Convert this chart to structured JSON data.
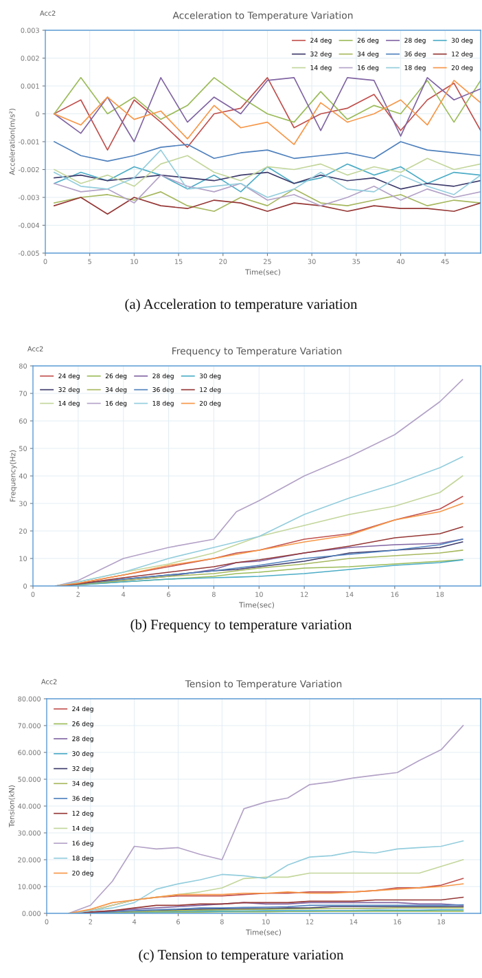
{
  "chart_data": [
    {
      "type": "line",
      "title": "Acceleration to Temperature Variation",
      "xlabel": "Time(sec)",
      "ylabel": "Acceleration(m/s²)",
      "annotations": [
        "Acc2",
        "(a) Acceleration to temperature variation"
      ],
      "x": [
        1,
        4,
        7,
        10,
        13,
        16,
        19,
        22,
        25,
        28,
        31,
        34,
        37,
        40,
        43,
        46,
        49
      ],
      "xlim": [
        0,
        49
      ],
      "xticks": [
        0,
        5,
        10,
        15,
        20,
        25,
        30,
        35,
        40,
        45
      ],
      "ylim": [
        -0.005,
        0.003
      ],
      "yticks": [
        -0.005,
        -0.004,
        -0.003,
        -0.002,
        -0.001,
        0,
        0.001,
        0.002,
        0.003
      ],
      "grid": true,
      "legend": "top right",
      "series": [
        {
          "name": "24 deg",
          "color": "#c0504d",
          "values": [
            0,
            0.0005,
            -0.0013,
            0.0005,
            -0.0003,
            -0.0012,
            0,
            0.0002,
            0.0013,
            -0.0005,
            0,
            0.0002,
            0.0007,
            -0.0006,
            0.0005,
            0.0011,
            -0.0006
          ]
        },
        {
          "name": "26 deg",
          "color": "#9bbb59",
          "values": [
            0,
            0.0013,
            0,
            0.0006,
            -0.0002,
            0.0003,
            0.0013,
            0.0006,
            0,
            -0.0003,
            0.0008,
            -0.0002,
            0.0003,
            0,
            0.0012,
            -0.0003,
            0.0012
          ]
        },
        {
          "name": "28 deg",
          "color": "#8064a2",
          "values": [
            0,
            -0.0007,
            0.0006,
            -0.001,
            0.0013,
            -0.0003,
            0.0006,
            0,
            0.0012,
            0.0013,
            -0.0006,
            0.0013,
            0.0012,
            -0.0008,
            0.0013,
            0.0005,
            0.0009
          ]
        },
        {
          "name": "30 deg",
          "color": "#4bacc6",
          "values": [
            -0.0025,
            -0.0021,
            -0.0024,
            -0.0019,
            -0.0022,
            -0.0027,
            -0.0022,
            -0.0028,
            -0.0019,
            -0.0025,
            -0.0023,
            -0.0018,
            -0.0022,
            -0.0019,
            -0.0025,
            -0.0021,
            -0.0022
          ]
        },
        {
          "name": "32 deg",
          "color": "#3d3a6b",
          "values": [
            -0.0023,
            -0.0022,
            -0.0024,
            -0.0023,
            -0.0022,
            -0.0023,
            -0.0024,
            -0.0022,
            -0.0021,
            -0.0025,
            -0.0022,
            -0.0024,
            -0.0023,
            -0.0027,
            -0.0025,
            -0.0026,
            -0.0024
          ]
        },
        {
          "name": "34 deg",
          "color": "#a6b85e",
          "values": [
            -0.0032,
            -0.003,
            -0.0029,
            -0.0031,
            -0.0028,
            -0.0033,
            -0.0035,
            -0.003,
            -0.0033,
            -0.0027,
            -0.0032,
            -0.0033,
            -0.0031,
            -0.0029,
            -0.0033,
            -0.0031,
            -0.0032
          ]
        },
        {
          "name": "36 deg",
          "color": "#4f81bd",
          "values": [
            -0.001,
            -0.0015,
            -0.0017,
            -0.0015,
            -0.0012,
            -0.0011,
            -0.0016,
            -0.0014,
            -0.0013,
            -0.0016,
            -0.0015,
            -0.0014,
            -0.0016,
            -0.001,
            -0.0013,
            -0.0014,
            -0.0015
          ]
        },
        {
          "name": "12 deg",
          "color": "#953735",
          "values": [
            -0.0033,
            -0.003,
            -0.0036,
            -0.003,
            -0.0033,
            -0.0034,
            -0.0031,
            -0.0032,
            -0.0035,
            -0.0032,
            -0.0033,
            -0.0035,
            -0.0033,
            -0.0034,
            -0.0034,
            -0.0035,
            -0.0032
          ]
        },
        {
          "name": "14 deg",
          "color": "#c3d69b",
          "values": [
            -0.002,
            -0.0025,
            -0.0022,
            -0.0026,
            -0.0018,
            -0.0015,
            -0.0021,
            -0.0024,
            -0.0019,
            -0.002,
            -0.0018,
            -0.0022,
            -0.0019,
            -0.0021,
            -0.0016,
            -0.002,
            -0.0018
          ]
        },
        {
          "name": "16 deg",
          "color": "#b3a2c7",
          "values": [
            -0.0025,
            -0.0028,
            -0.0027,
            -0.0032,
            -0.0022,
            -0.0026,
            -0.0028,
            -0.0025,
            -0.0031,
            -0.0029,
            -0.0033,
            -0.003,
            -0.0026,
            -0.0031,
            -0.0027,
            -0.003,
            -0.0028
          ]
        },
        {
          "name": "18 deg",
          "color": "#93cddd",
          "values": [
            -0.0021,
            -0.0026,
            -0.0027,
            -0.0023,
            -0.0013,
            -0.0027,
            -0.0026,
            -0.0025,
            -0.003,
            -0.0027,
            -0.0021,
            -0.0027,
            -0.0028,
            -0.0022,
            -0.0026,
            -0.0029,
            -0.0022
          ]
        },
        {
          "name": "20 deg",
          "color": "#f79646",
          "values": [
            0,
            -0.0004,
            0.0006,
            -0.0002,
            0.0001,
            -0.0009,
            0.0003,
            -0.0005,
            -0.0003,
            -0.0011,
            0.0004,
            -0.0003,
            0,
            0.0005,
            -0.0004,
            0.0012,
            0.0004
          ]
        }
      ]
    },
    {
      "type": "line",
      "title": "Frequency to Temperature Variation",
      "xlabel": "Time(sec)",
      "ylabel": "Frequency(Hz)",
      "annotations": [
        "Acc2",
        "(b) Frequency to temperature variation"
      ],
      "x": [
        1,
        2,
        4,
        6,
        8,
        9,
        10,
        12,
        14,
        16,
        18,
        19
      ],
      "xlim": [
        0,
        19.8
      ],
      "xticks": [
        0,
        2,
        4,
        6,
        8,
        10,
        12,
        14,
        16,
        18
      ],
      "ylim": [
        0,
        80
      ],
      "yticks": [
        0,
        10,
        20,
        30,
        40,
        50,
        60,
        70,
        80
      ],
      "grid": true,
      "legend": "top left",
      "series": [
        {
          "name": "24 deg",
          "color": "#c0504d",
          "values": [
            0,
            1,
            4,
            7,
            10,
            12,
            13,
            17,
            19,
            24,
            28,
            32.5
          ]
        },
        {
          "name": "26 deg",
          "color": "#9bbb59",
          "values": [
            0,
            0.4,
            1.5,
            2.5,
            3.5,
            4.5,
            5,
            6.5,
            7,
            8,
            9,
            9.5
          ]
        },
        {
          "name": "28 deg",
          "color": "#8064a2",
          "values": [
            0,
            0.6,
            2,
            3.5,
            6,
            8.5,
            9,
            12,
            14,
            15,
            15.5,
            17
          ]
        },
        {
          "name": "30 deg",
          "color": "#4bacc6",
          "values": [
            0,
            0.4,
            1.5,
            2.5,
            3,
            3.2,
            3.5,
            4.5,
            6,
            7.5,
            8.5,
            9.5
          ]
        },
        {
          "name": "32 deg",
          "color": "#3d3a6b",
          "values": [
            0,
            0.7,
            2.5,
            4,
            5.5,
            6,
            7,
            9,
            12,
            13,
            14,
            16
          ]
        },
        {
          "name": "34 deg",
          "color": "#a6b85e",
          "values": [
            0,
            0.5,
            2,
            3.5,
            4.5,
            5.5,
            6.5,
            8,
            10,
            11,
            12,
            13
          ]
        },
        {
          "name": "36 deg",
          "color": "#4f81bd",
          "values": [
            0,
            0.7,
            2.5,
            4,
            5.5,
            6.5,
            7.5,
            10,
            11.5,
            13,
            15,
            17
          ]
        },
        {
          "name": "12 deg",
          "color": "#953735",
          "values": [
            0,
            0.8,
            3,
            5,
            7,
            8.5,
            9.5,
            12,
            14.5,
            17.5,
            19,
            21.5
          ]
        },
        {
          "name": "14 deg",
          "color": "#c3d69b",
          "values": [
            0,
            1.5,
            5,
            8,
            12,
            15,
            18,
            22,
            26,
            29,
            34,
            40
          ]
        },
        {
          "name": "16 deg",
          "color": "#b3a2c7",
          "values": [
            0,
            2,
            10,
            14,
            17,
            27,
            31,
            40,
            47,
            55,
            67,
            75
          ]
        },
        {
          "name": "18 deg",
          "color": "#93cddd",
          "values": [
            0,
            1.5,
            5,
            10,
            14,
            16,
            18,
            26,
            32,
            37,
            43,
            47
          ]
        },
        {
          "name": "20 deg",
          "color": "#f79646",
          "values": [
            0,
            1,
            4,
            7.5,
            10,
            11.5,
            13,
            16,
            18.5,
            24,
            27,
            30
          ]
        }
      ]
    },
    {
      "type": "line",
      "title": "Tension to Temperature Variation",
      "xlabel": "Time(sec)",
      "ylabel": "Tension(kN)",
      "annotations": [
        "Acc2",
        "(c) Tension to temperature variation"
      ],
      "x": [
        1,
        2,
        3,
        4,
        5,
        6,
        7,
        8,
        9,
        10,
        11,
        12,
        13,
        14,
        15,
        16,
        17,
        18,
        19
      ],
      "xlim": [
        0,
        19.8
      ],
      "xticks": [
        0,
        2,
        4,
        6,
        8,
        10,
        12,
        14,
        16,
        18
      ],
      "ylim": [
        0,
        80
      ],
      "yticks": [
        {
          "value": 0,
          "label": "0.000"
        },
        {
          "value": 10,
          "label": "10.000"
        },
        {
          "value": 20,
          "label": "20.000"
        },
        {
          "value": 30,
          "label": "30.000"
        },
        {
          "value": 40,
          "label": "40.000"
        },
        {
          "value": 50,
          "label": "50.000"
        },
        {
          "value": 60,
          "label": "60.000"
        },
        {
          "value": 70,
          "label": "70.000"
        },
        {
          "value": 80,
          "label": "80.000"
        }
      ],
      "grid": true,
      "legend": "left",
      "series": [
        {
          "name": "24 deg",
          "color": "#c0504d",
          "values": [
            0,
            1,
            3,
            5,
            6,
            6.5,
            6.5,
            6.5,
            7,
            7.5,
            7.5,
            8,
            8,
            8,
            8.5,
            9.5,
            9.5,
            10.5,
            13
          ]
        },
        {
          "name": "26 deg",
          "color": "#9bbb59",
          "values": [
            0,
            0.1,
            0.2,
            0.3,
            0.4,
            0.5,
            0.5,
            0.6,
            0.6,
            0.6,
            0.7,
            0.7,
            0.7,
            0.7,
            0.8,
            0.8,
            0.8,
            0.8,
            0.8
          ]
        },
        {
          "name": "28 deg",
          "color": "#8064a2",
          "values": [
            0,
            0.5,
            1,
            1.5,
            2,
            2.5,
            3,
            3.5,
            4,
            3.5,
            3.5,
            4,
            4,
            4,
            4,
            4,
            3.5,
            3.5,
            3
          ]
        },
        {
          "name": "30 deg",
          "color": "#4bacc6",
          "values": [
            0,
            0.2,
            0.3,
            0.5,
            0.6,
            0.7,
            0.8,
            0.8,
            0.9,
            1,
            1,
            1,
            1.1,
            1.1,
            1.2,
            1.2,
            1.2,
            1.3,
            1.3
          ]
        },
        {
          "name": "32 deg",
          "color": "#3d3a6b",
          "values": [
            0,
            0.3,
            0.5,
            0.8,
            1,
            1.3,
            1.5,
            1.6,
            1.7,
            1.8,
            2,
            2,
            2.5,
            2.5,
            2.5,
            2.5,
            2.5,
            2.5,
            2.5
          ]
        },
        {
          "name": "34 deg",
          "color": "#a6b85e",
          "values": [
            0,
            0.2,
            0.4,
            0.6,
            0.8,
            1,
            1.2,
            1.3,
            1.4,
            1.5,
            1.6,
            1.7,
            1.8,
            1.8,
            1.9,
            2,
            2,
            2,
            2
          ]
        },
        {
          "name": "36 deg",
          "color": "#4f81bd",
          "values": [
            0,
            0.3,
            0.6,
            1,
            1.3,
            1.6,
            2,
            2,
            2.2,
            2.3,
            2.5,
            3,
            3,
            3,
            3,
            3,
            3,
            3,
            3.2
          ]
        },
        {
          "name": "12 deg",
          "color": "#953735",
          "values": [
            0,
            0.5,
            1,
            2,
            3,
            3,
            3.5,
            3.5,
            4,
            4,
            4,
            4.5,
            4.5,
            4.5,
            5,
            5,
            5,
            5,
            6
          ]
        },
        {
          "name": "14 deg",
          "color": "#c3d69b",
          "values": [
            0,
            1,
            3,
            5,
            6,
            7,
            8,
            9.5,
            13,
            13.5,
            13.5,
            15,
            15,
            15,
            15,
            15,
            15,
            17.5,
            20
          ]
        },
        {
          "name": "16 deg",
          "color": "#b3a2c7",
          "values": [
            0,
            3,
            12,
            25,
            24,
            24.5,
            22,
            20,
            39,
            41.5,
            43,
            48,
            49,
            50.5,
            51.5,
            52.5,
            57,
            61,
            70
          ]
        },
        {
          "name": "18 deg",
          "color": "#93cddd",
          "values": [
            0,
            1,
            2,
            4,
            9,
            11,
            12.5,
            14.5,
            14,
            13,
            18,
            21,
            21.5,
            23,
            22.5,
            24,
            24.5,
            25,
            27
          ]
        },
        {
          "name": "20 deg",
          "color": "#f79646",
          "values": [
            0,
            1.5,
            4,
            5,
            6,
            7,
            7,
            7,
            7.5,
            7.5,
            8,
            7.5,
            7.5,
            8,
            8.5,
            9,
            9.5,
            10,
            11
          ]
        }
      ]
    }
  ]
}
